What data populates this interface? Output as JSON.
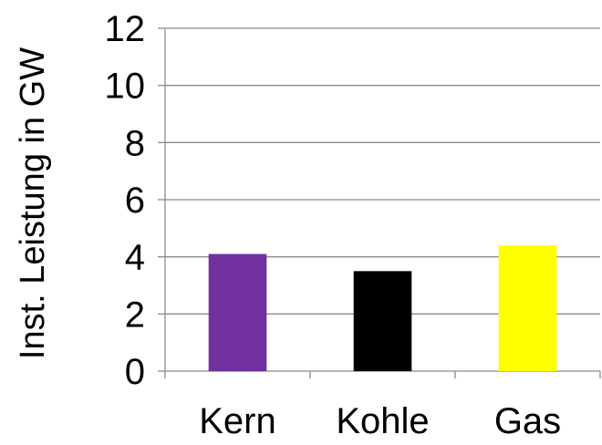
{
  "chart_data": {
    "type": "bar",
    "title": "",
    "xlabel": "",
    "ylabel": "Inst. Leistung in GW",
    "categories": [
      "Kern",
      "Kohle",
      "Gas"
    ],
    "values": [
      4.1,
      3.5,
      4.4
    ],
    "colors": [
      "#7030A0",
      "#000000",
      "#FFFF00"
    ],
    "ylim": [
      0,
      12
    ],
    "yticks": [
      0,
      2,
      4,
      6,
      8,
      10,
      12
    ],
    "ytick_labels": [
      "0",
      "2",
      "4",
      "6",
      "8",
      "10",
      "12"
    ],
    "grid": true,
    "legend": "none"
  }
}
